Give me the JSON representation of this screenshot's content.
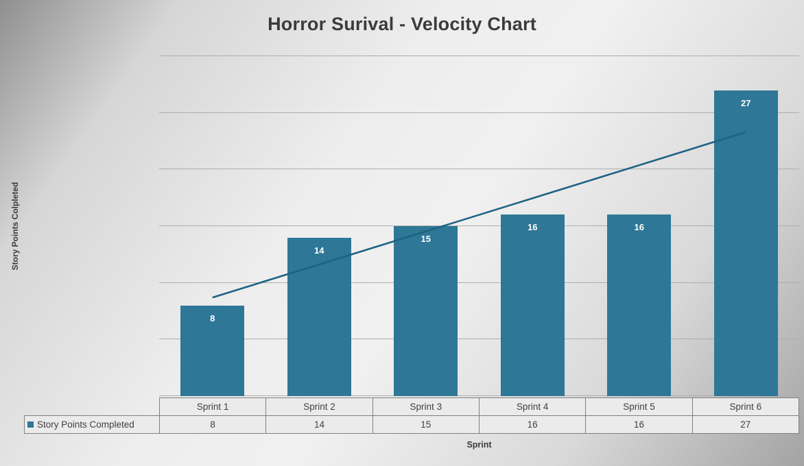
{
  "title": "Horror Surival - Velocity Chart",
  "colors": {
    "bar": "#2E7796",
    "trendline": "#1D6283",
    "bar_label_text": "#FFFFFF",
    "title_text": "#3B3B3B",
    "axis_text": "#3B3B3B",
    "gridline": "#ADADAD",
    "table_border": "#7F7F7F",
    "table_cell_background": "#EBEBEB"
  },
  "chart_data": {
    "type": "bar",
    "title": "Horror Surival - Velocity Chart",
    "xlabel": "Sprint",
    "ylabel": "Story Points Colpleted",
    "categories": [
      "Sprint 1",
      "Sprint 2",
      "Sprint 3",
      "Sprint 4",
      "Sprint 5",
      "Sprint 6"
    ],
    "series": [
      {
        "name": "Story Points Completed",
        "values": [
          8,
          14,
          15,
          16,
          16,
          27
        ]
      }
    ],
    "ylim": [
      0,
      30
    ],
    "gridline_step": 5,
    "grid": true,
    "y_tick_labels_visible": false,
    "data_labels": true,
    "data_table": true,
    "legend_position": "table-left",
    "trendline": {
      "type": "linear",
      "start_value": 8.7,
      "end_value": 23.3
    }
  }
}
